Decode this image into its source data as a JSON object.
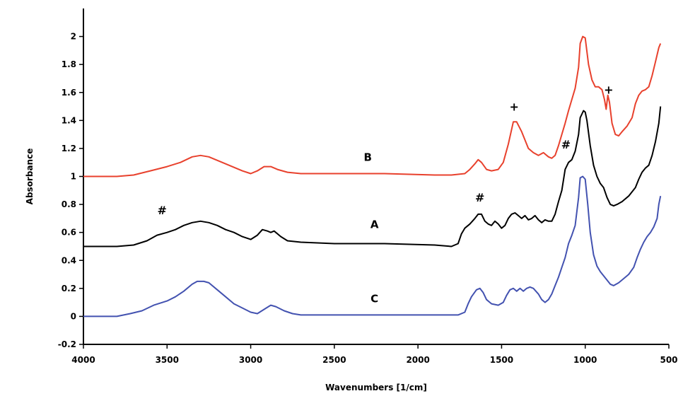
{
  "chart_data": {
    "type": "line",
    "xlabel": "Wavenumbers [1/cm]",
    "ylabel": "Absorbance",
    "xlim": [
      4000,
      500
    ],
    "ylim": [
      -0.2,
      2.2
    ],
    "x_reversed": true,
    "x_ticks": [
      4000,
      3500,
      3000,
      2500,
      2000,
      1500,
      1000,
      500
    ],
    "y_ticks": [
      -0.2,
      0,
      0.2,
      0.4,
      0.6,
      0.8,
      1,
      1.2,
      1.4,
      1.6,
      1.8,
      2
    ],
    "x_tick_labels": [
      "4000",
      "3500",
      "3000",
      "2500",
      "2000",
      "1500",
      "1000",
      "500"
    ],
    "y_tick_labels": [
      "-0.2",
      "0",
      "0.2",
      "0.4",
      "0.6",
      "0.8",
      "1",
      "1.2",
      "1.4",
      "1.6",
      "1.8",
      "2"
    ],
    "grid": false,
    "series": [
      {
        "name": "B",
        "color": "#e8412d",
        "label_at": [
          2300,
          1.11
        ],
        "points": [
          [
            4000,
            1.0
          ],
          [
            3800,
            1.0
          ],
          [
            3700,
            1.01
          ],
          [
            3600,
            1.04
          ],
          [
            3500,
            1.07
          ],
          [
            3420,
            1.1
          ],
          [
            3350,
            1.14
          ],
          [
            3300,
            1.15
          ],
          [
            3250,
            1.14
          ],
          [
            3150,
            1.09
          ],
          [
            3050,
            1.04
          ],
          [
            3000,
            1.02
          ],
          [
            2960,
            1.04
          ],
          [
            2920,
            1.07
          ],
          [
            2880,
            1.07
          ],
          [
            2840,
            1.05
          ],
          [
            2780,
            1.03
          ],
          [
            2700,
            1.02
          ],
          [
            2500,
            1.02
          ],
          [
            2200,
            1.02
          ],
          [
            1900,
            1.01
          ],
          [
            1800,
            1.01
          ],
          [
            1720,
            1.02
          ],
          [
            1690,
            1.05
          ],
          [
            1660,
            1.09
          ],
          [
            1640,
            1.12
          ],
          [
            1620,
            1.1
          ],
          [
            1590,
            1.05
          ],
          [
            1560,
            1.04
          ],
          [
            1520,
            1.05
          ],
          [
            1490,
            1.1
          ],
          [
            1460,
            1.23
          ],
          [
            1430,
            1.39
          ],
          [
            1410,
            1.39
          ],
          [
            1380,
            1.32
          ],
          [
            1340,
            1.2
          ],
          [
            1310,
            1.17
          ],
          [
            1280,
            1.15
          ],
          [
            1250,
            1.17
          ],
          [
            1220,
            1.14
          ],
          [
            1200,
            1.13
          ],
          [
            1180,
            1.15
          ],
          [
            1160,
            1.22
          ],
          [
            1140,
            1.3
          ],
          [
            1120,
            1.38
          ],
          [
            1100,
            1.47
          ],
          [
            1080,
            1.55
          ],
          [
            1060,
            1.63
          ],
          [
            1040,
            1.78
          ],
          [
            1030,
            1.95
          ],
          [
            1015,
            2.0
          ],
          [
            1000,
            1.99
          ],
          [
            980,
            1.8
          ],
          [
            960,
            1.69
          ],
          [
            940,
            1.64
          ],
          [
            920,
            1.64
          ],
          [
            900,
            1.62
          ],
          [
            885,
            1.55
          ],
          [
            875,
            1.48
          ],
          [
            865,
            1.58
          ],
          [
            855,
            1.53
          ],
          [
            840,
            1.38
          ],
          [
            820,
            1.3
          ],
          [
            800,
            1.29
          ],
          [
            780,
            1.32
          ],
          [
            750,
            1.36
          ],
          [
            720,
            1.42
          ],
          [
            700,
            1.52
          ],
          [
            680,
            1.58
          ],
          [
            660,
            1.61
          ],
          [
            640,
            1.62
          ],
          [
            620,
            1.64
          ],
          [
            600,
            1.72
          ],
          [
            580,
            1.82
          ],
          [
            560,
            1.92
          ],
          [
            550,
            1.95
          ]
        ]
      },
      {
        "name": "A",
        "color": "#000000",
        "label_at": [
          2260,
          0.63
        ],
        "points": [
          [
            4000,
            0.5
          ],
          [
            3800,
            0.5
          ],
          [
            3700,
            0.51
          ],
          [
            3620,
            0.54
          ],
          [
            3560,
            0.58
          ],
          [
            3500,
            0.6
          ],
          [
            3450,
            0.62
          ],
          [
            3400,
            0.65
          ],
          [
            3350,
            0.67
          ],
          [
            3300,
            0.68
          ],
          [
            3250,
            0.67
          ],
          [
            3200,
            0.65
          ],
          [
            3150,
            0.62
          ],
          [
            3100,
            0.6
          ],
          [
            3050,
            0.57
          ],
          [
            3000,
            0.55
          ],
          [
            2960,
            0.58
          ],
          [
            2930,
            0.62
          ],
          [
            2900,
            0.61
          ],
          [
            2880,
            0.6
          ],
          [
            2860,
            0.61
          ],
          [
            2820,
            0.57
          ],
          [
            2780,
            0.54
          ],
          [
            2700,
            0.53
          ],
          [
            2500,
            0.52
          ],
          [
            2200,
            0.52
          ],
          [
            1900,
            0.51
          ],
          [
            1800,
            0.5
          ],
          [
            1760,
            0.52
          ],
          [
            1740,
            0.59
          ],
          [
            1720,
            0.63
          ],
          [
            1690,
            0.66
          ],
          [
            1660,
            0.7
          ],
          [
            1640,
            0.73
          ],
          [
            1620,
            0.73
          ],
          [
            1600,
            0.68
          ],
          [
            1580,
            0.66
          ],
          [
            1560,
            0.65
          ],
          [
            1540,
            0.68
          ],
          [
            1520,
            0.66
          ],
          [
            1500,
            0.63
          ],
          [
            1480,
            0.65
          ],
          [
            1460,
            0.7
          ],
          [
            1440,
            0.73
          ],
          [
            1420,
            0.74
          ],
          [
            1400,
            0.72
          ],
          [
            1380,
            0.7
          ],
          [
            1360,
            0.72
          ],
          [
            1340,
            0.69
          ],
          [
            1320,
            0.7
          ],
          [
            1300,
            0.72
          ],
          [
            1280,
            0.69
          ],
          [
            1260,
            0.67
          ],
          [
            1240,
            0.69
          ],
          [
            1220,
            0.68
          ],
          [
            1200,
            0.68
          ],
          [
            1180,
            0.73
          ],
          [
            1160,
            0.82
          ],
          [
            1140,
            0.9
          ],
          [
            1120,
            1.05
          ],
          [
            1100,
            1.1
          ],
          [
            1080,
            1.12
          ],
          [
            1060,
            1.18
          ],
          [
            1040,
            1.3
          ],
          [
            1030,
            1.42
          ],
          [
            1010,
            1.47
          ],
          [
            1000,
            1.46
          ],
          [
            990,
            1.4
          ],
          [
            970,
            1.22
          ],
          [
            950,
            1.08
          ],
          [
            930,
            1.0
          ],
          [
            910,
            0.95
          ],
          [
            890,
            0.92
          ],
          [
            870,
            0.85
          ],
          [
            850,
            0.8
          ],
          [
            830,
            0.79
          ],
          [
            810,
            0.8
          ],
          [
            780,
            0.82
          ],
          [
            740,
            0.86
          ],
          [
            700,
            0.92
          ],
          [
            680,
            0.98
          ],
          [
            660,
            1.03
          ],
          [
            640,
            1.06
          ],
          [
            620,
            1.08
          ],
          [
            600,
            1.15
          ],
          [
            580,
            1.25
          ],
          [
            560,
            1.38
          ],
          [
            550,
            1.5
          ]
        ]
      },
      {
        "name": "C",
        "color": "#4352b0",
        "label_at": [
          2260,
          0.1
        ],
        "points": [
          [
            4000,
            0.0
          ],
          [
            3800,
            0.0
          ],
          [
            3720,
            0.02
          ],
          [
            3650,
            0.04
          ],
          [
            3580,
            0.08
          ],
          [
            3500,
            0.11
          ],
          [
            3450,
            0.14
          ],
          [
            3400,
            0.18
          ],
          [
            3350,
            0.23
          ],
          [
            3320,
            0.25
          ],
          [
            3280,
            0.25
          ],
          [
            3250,
            0.24
          ],
          [
            3200,
            0.19
          ],
          [
            3150,
            0.14
          ],
          [
            3100,
            0.09
          ],
          [
            3050,
            0.06
          ],
          [
            3000,
            0.03
          ],
          [
            2960,
            0.02
          ],
          [
            2920,
            0.05
          ],
          [
            2880,
            0.08
          ],
          [
            2850,
            0.07
          ],
          [
            2800,
            0.04
          ],
          [
            2750,
            0.02
          ],
          [
            2700,
            0.01
          ],
          [
            2500,
            0.01
          ],
          [
            2200,
            0.01
          ],
          [
            1900,
            0.01
          ],
          [
            1760,
            0.01
          ],
          [
            1720,
            0.03
          ],
          [
            1700,
            0.09
          ],
          [
            1680,
            0.14
          ],
          [
            1650,
            0.19
          ],
          [
            1630,
            0.2
          ],
          [
            1610,
            0.17
          ],
          [
            1590,
            0.12
          ],
          [
            1560,
            0.09
          ],
          [
            1520,
            0.08
          ],
          [
            1490,
            0.1
          ],
          [
            1470,
            0.15
          ],
          [
            1450,
            0.19
          ],
          [
            1430,
            0.2
          ],
          [
            1410,
            0.18
          ],
          [
            1390,
            0.2
          ],
          [
            1370,
            0.18
          ],
          [
            1350,
            0.2
          ],
          [
            1330,
            0.21
          ],
          [
            1310,
            0.2
          ],
          [
            1280,
            0.16
          ],
          [
            1260,
            0.12
          ],
          [
            1240,
            0.1
          ],
          [
            1220,
            0.12
          ],
          [
            1200,
            0.16
          ],
          [
            1180,
            0.22
          ],
          [
            1160,
            0.28
          ],
          [
            1140,
            0.35
          ],
          [
            1120,
            0.42
          ],
          [
            1100,
            0.52
          ],
          [
            1080,
            0.58
          ],
          [
            1060,
            0.65
          ],
          [
            1040,
            0.85
          ],
          [
            1030,
            0.99
          ],
          [
            1015,
            1.0
          ],
          [
            1000,
            0.98
          ],
          [
            985,
            0.8
          ],
          [
            970,
            0.6
          ],
          [
            950,
            0.44
          ],
          [
            930,
            0.36
          ],
          [
            910,
            0.32
          ],
          [
            890,
            0.29
          ],
          [
            870,
            0.26
          ],
          [
            850,
            0.23
          ],
          [
            830,
            0.22
          ],
          [
            800,
            0.24
          ],
          [
            770,
            0.27
          ],
          [
            740,
            0.3
          ],
          [
            710,
            0.35
          ],
          [
            690,
            0.42
          ],
          [
            670,
            0.48
          ],
          [
            650,
            0.53
          ],
          [
            630,
            0.57
          ],
          [
            610,
            0.6
          ],
          [
            590,
            0.64
          ],
          [
            570,
            0.7
          ],
          [
            560,
            0.8
          ],
          [
            550,
            0.86
          ]
        ]
      }
    ],
    "annotations": [
      {
        "text": "#",
        "x": 3530,
        "y": 0.73
      },
      {
        "text": "#",
        "x": 1630,
        "y": 0.82
      },
      {
        "text": "#",
        "x": 1115,
        "y": 1.2
      },
      {
        "text": "+",
        "x": 1425,
        "y": 1.47
      },
      {
        "text": "+",
        "x": 860,
        "y": 1.59
      }
    ]
  }
}
